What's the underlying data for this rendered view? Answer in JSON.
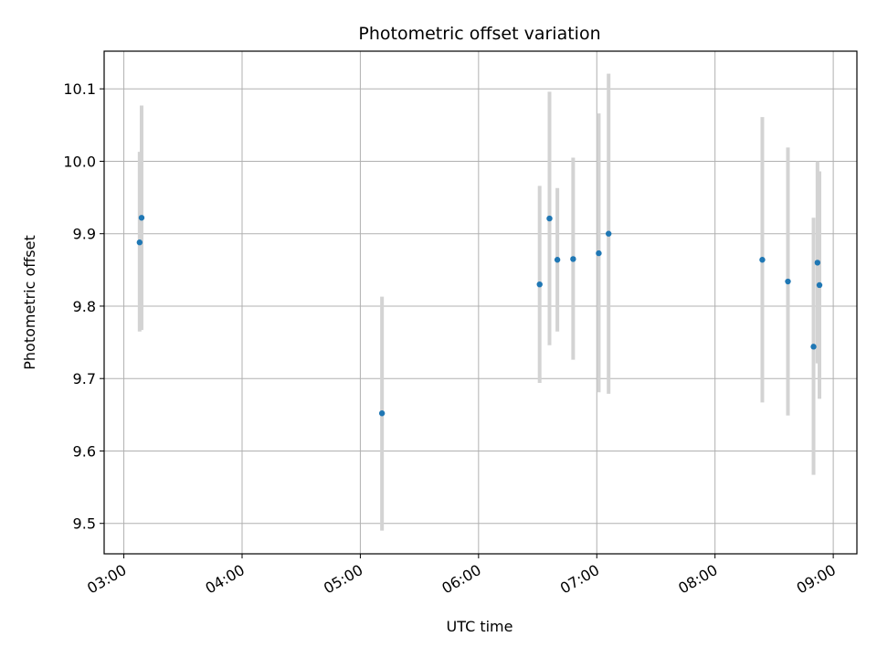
{
  "chart_data": {
    "type": "scatter",
    "title": "Photometric offset variation",
    "xlabel": "UTC time",
    "ylabel": "Photometric offset",
    "x_ticks": [
      "03:00",
      "04:00",
      "05:00",
      "06:00",
      "07:00",
      "08:00",
      "09:00"
    ],
    "y_ticks": [
      "9.5",
      "9.6",
      "9.7",
      "9.8",
      "9.9",
      "10.0",
      "10.1"
    ],
    "xlim": [
      "02:50",
      "09:12"
    ],
    "ylim": [
      9.458,
      10.152
    ],
    "grid": true,
    "marker_color": "#1f77b4",
    "errorbar_color": "#d3d3d3",
    "points": [
      {
        "x": "03:08",
        "y": 9.888,
        "y_low": 9.765,
        "y_high": 10.013
      },
      {
        "x": "03:09",
        "y": 9.922,
        "y_low": 9.767,
        "y_high": 10.077
      },
      {
        "x": "05:11",
        "y": 9.652,
        "y_low": 9.49,
        "y_high": 9.813
      },
      {
        "x": "06:31",
        "y": 9.83,
        "y_low": 9.694,
        "y_high": 9.966
      },
      {
        "x": "06:36",
        "y": 9.921,
        "y_low": 9.746,
        "y_high": 10.096
      },
      {
        "x": "06:40",
        "y": 9.864,
        "y_low": 9.765,
        "y_high": 9.963
      },
      {
        "x": "06:48",
        "y": 9.865,
        "y_low": 9.726,
        "y_high": 10.005
      },
      {
        "x": "07:01",
        "y": 9.873,
        "y_low": 9.681,
        "y_high": 10.066
      },
      {
        "x": "07:06",
        "y": 9.9,
        "y_low": 9.679,
        "y_high": 10.121
      },
      {
        "x": "08:24",
        "y": 9.864,
        "y_low": 9.667,
        "y_high": 10.061
      },
      {
        "x": "08:37",
        "y": 9.834,
        "y_low": 9.649,
        "y_high": 10.019
      },
      {
        "x": "08:50",
        "y": 9.744,
        "y_low": 9.567,
        "y_high": 9.922
      },
      {
        "x": "08:52",
        "y": 9.86,
        "y_low": 9.721,
        "y_high": 10.0
      },
      {
        "x": "08:53",
        "y": 9.829,
        "y_low": 9.672,
        "y_high": 9.986
      }
    ]
  }
}
